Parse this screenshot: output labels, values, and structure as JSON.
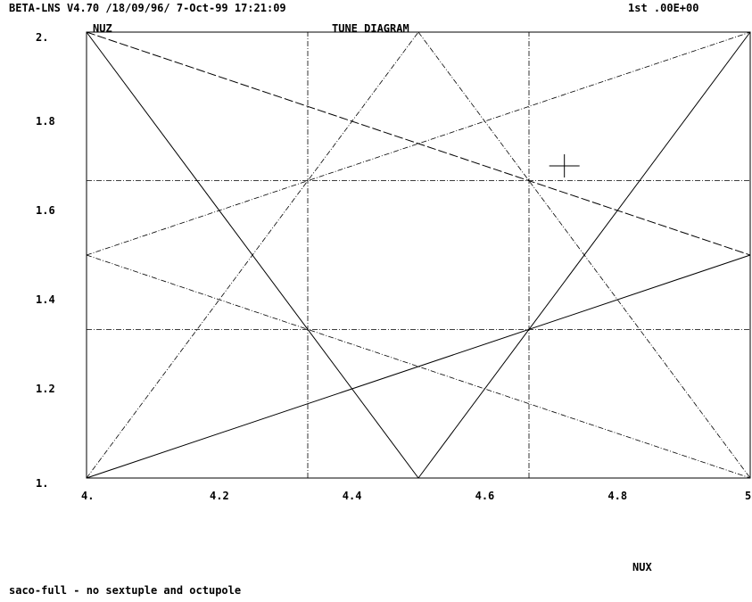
{
  "header": {
    "program": "BETA-LNS V4.70 /18/09/96/  7-Oct-99 17:21:09",
    "status": "1st  .00E+00"
  },
  "footer": {
    "caption": "saco-full - no sextuple and octupole"
  },
  "chart_data": {
    "type": "line",
    "title": "TUNE DIAGRAM",
    "xlabel": "NUX",
    "ylabel": "NUZ",
    "xlim": [
      4.0,
      5.0
    ],
    "ylim": [
      1.0,
      2.0
    ],
    "x_ticks": [
      "4.",
      "4.2",
      "4.4",
      "4.6",
      "4.8",
      "5"
    ],
    "y_ticks": [
      "1.",
      "1.2",
      "1.4",
      "1.6",
      "1.8",
      "2."
    ],
    "grid": false,
    "resonance_lines": [
      {
        "style": "solid",
        "x": [
          4.0,
          4.5
        ],
        "y": [
          2.0,
          1.0
        ]
      },
      {
        "style": "solid",
        "x": [
          4.5,
          5.0
        ],
        "y": [
          1.0,
          2.0
        ]
      },
      {
        "style": "solid",
        "x": [
          4.0,
          5.0
        ],
        "y": [
          1.0,
          1.5
        ]
      },
      {
        "style": "dash",
        "x": [
          4.0,
          5.0
        ],
        "y": [
          2.0,
          1.5
        ]
      },
      {
        "style": "dashdot",
        "x": [
          4.0,
          4.5
        ],
        "y": [
          1.0,
          2.0
        ]
      },
      {
        "style": "dashdot",
        "x": [
          4.5,
          5.0
        ],
        "y": [
          2.0,
          1.0
        ]
      },
      {
        "style": "dashdot",
        "x": [
          4.0,
          5.0
        ],
        "y": [
          1.5,
          2.0
        ]
      },
      {
        "style": "dashdot",
        "x": [
          4.0,
          5.0
        ],
        "y": [
          1.5,
          1.0
        ]
      },
      {
        "style": "dashdot",
        "x": [
          4.3333,
          4.3333
        ],
        "y": [
          1.0,
          2.0
        ]
      },
      {
        "style": "dashdot",
        "x": [
          4.6667,
          4.6667
        ],
        "y": [
          1.0,
          2.0
        ]
      },
      {
        "style": "dashdot",
        "x": [
          4.0,
          5.0
        ],
        "y": [
          1.6667,
          1.6667
        ]
      },
      {
        "style": "dashdot",
        "x": [
          4.0,
          5.0
        ],
        "y": [
          1.3333,
          1.3333
        ]
      }
    ],
    "working_point": {
      "x": 4.72,
      "y": 1.7
    }
  }
}
